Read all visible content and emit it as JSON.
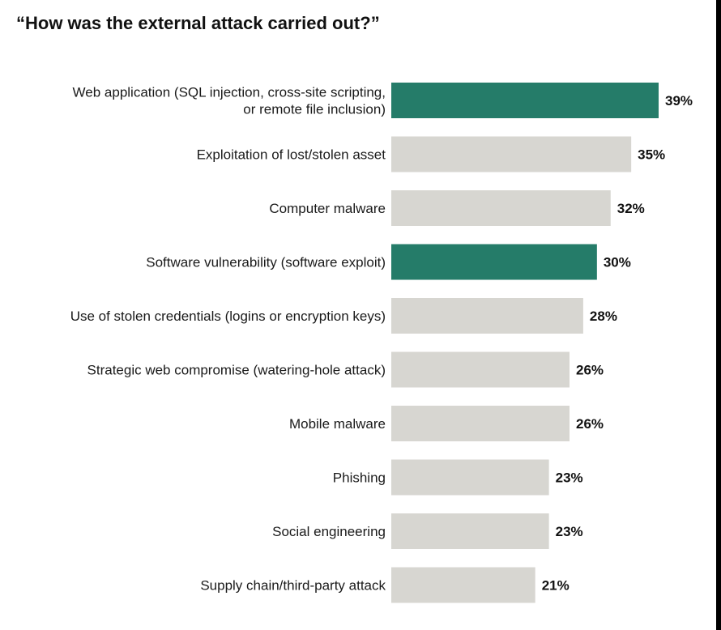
{
  "chart_data": {
    "type": "bar",
    "orientation": "horizontal",
    "title": "“How was the external attack carried out?”",
    "categories": [
      [
        "Web application (SQL injection, cross-site scripting,",
        "or remote file inclusion)"
      ],
      [
        "Exploitation of lost/stolen asset"
      ],
      [
        "Computer malware"
      ],
      [
        "Software vulnerability (software exploit)"
      ],
      [
        "Use of stolen credentials (logins or encryption keys)"
      ],
      [
        "Strategic web compromise (watering-hole attack)"
      ],
      [
        "Mobile malware"
      ],
      [
        "Phishing"
      ],
      [
        "Social engineering"
      ],
      [
        "Supply chain/third-party attack"
      ]
    ],
    "values": [
      39,
      35,
      32,
      30,
      28,
      26,
      26,
      23,
      23,
      21
    ],
    "value_labels": [
      "39%",
      "35%",
      "32%",
      "30%",
      "28%",
      "26%",
      "26%",
      "23%",
      "23%",
      "21%"
    ],
    "highlighted": [
      true,
      false,
      false,
      true,
      false,
      false,
      false,
      false,
      false,
      false
    ],
    "unit": "%",
    "xlim": [
      0,
      39
    ],
    "grid": false,
    "colors": {
      "highlight": "#257c69",
      "default": "#d7d6d1"
    }
  }
}
